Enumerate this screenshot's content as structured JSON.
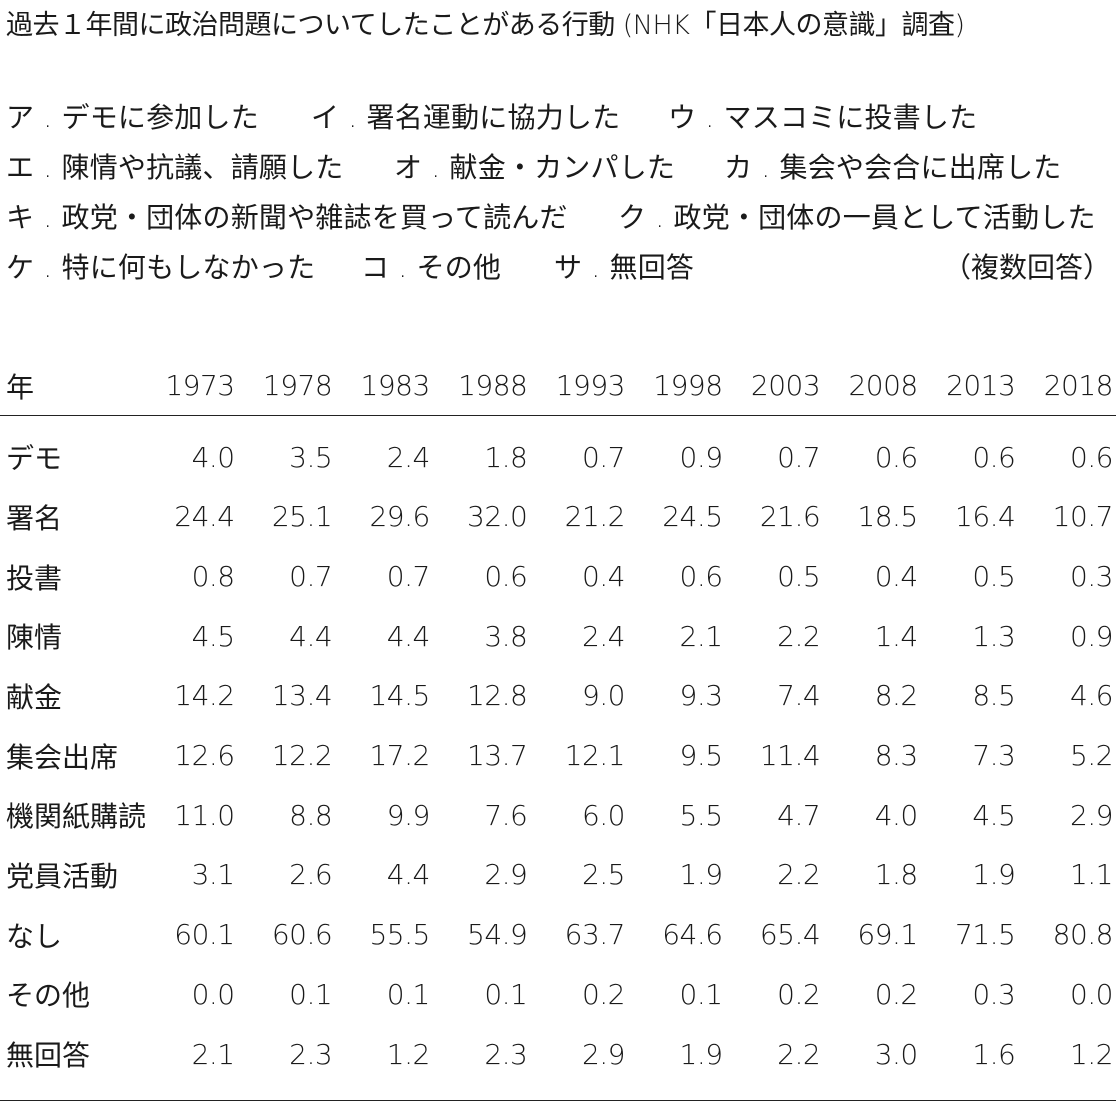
{
  "title": "過去１年間に政治問題についてしたことがある行動 (NHK「日本人の意識」調査)",
  "legend": {
    "row1": [
      "ア . デモに参加した",
      "イ . 署名運動に協力した",
      "ウ . マスコミに投書した"
    ],
    "row2": [
      "エ . 陳情や抗議、請願した",
      "オ . 献金・カンパした",
      "カ . 集会や会合に出席した"
    ],
    "row3": [
      "キ . 政党・団体の新聞や雑誌を買って読んだ",
      "ク . 政党・団体の一員として活動した"
    ],
    "row4": [
      "ケ . 特に何もしなかった",
      "コ . その他",
      "サ . 無回答"
    ],
    "note": "（複数回答）"
  },
  "table": {
    "header_label": "年",
    "years": [
      "1973",
      "1978",
      "1983",
      "1988",
      "1993",
      "1998",
      "2003",
      "2008",
      "2013",
      "2018"
    ],
    "rows": [
      {
        "label": "デモ",
        "values": [
          "4.0",
          "3.5",
          "2.4",
          "1.8",
          "0.7",
          "0.9",
          "0.7",
          "0.6",
          "0.6",
          "0.6"
        ]
      },
      {
        "label": "署名",
        "values": [
          "24.4",
          "25.1",
          "29.6",
          "32.0",
          "21.2",
          "24.5",
          "21.6",
          "18.5",
          "16.4",
          "10.7"
        ]
      },
      {
        "label": "投書",
        "values": [
          "0.8",
          "0.7",
          "0.7",
          "0.6",
          "0.4",
          "0.6",
          "0.5",
          "0.4",
          "0.5",
          "0.3"
        ]
      },
      {
        "label": "陳情",
        "values": [
          "4.5",
          "4.4",
          "4.4",
          "3.8",
          "2.4",
          "2.1",
          "2.2",
          "1.4",
          "1.3",
          "0.9"
        ]
      },
      {
        "label": "献金",
        "values": [
          "14.2",
          "13.4",
          "14.5",
          "12.8",
          "9.0",
          "9.3",
          "7.4",
          "8.2",
          "8.5",
          "4.6"
        ]
      },
      {
        "label": "集会出席",
        "values": [
          "12.6",
          "12.2",
          "17.2",
          "13.7",
          "12.1",
          "9.5",
          "11.4",
          "8.3",
          "7.3",
          "5.2"
        ]
      },
      {
        "label": "機関紙購読",
        "values": [
          "11.0",
          "8.8",
          "9.9",
          "7.6",
          "6.0",
          "5.5",
          "4.7",
          "4.0",
          "4.5",
          "2.9"
        ]
      },
      {
        "label": "党員活動",
        "values": [
          "3.1",
          "2.6",
          "4.4",
          "2.9",
          "2.5",
          "1.9",
          "2.2",
          "1.8",
          "1.9",
          "1.1"
        ]
      },
      {
        "label": "なし",
        "values": [
          "60.1",
          "60.6",
          "55.5",
          "54.9",
          "63.7",
          "64.6",
          "65.4",
          "69.1",
          "71.5",
          "80.8"
        ]
      },
      {
        "label": "その他",
        "values": [
          "0.0",
          "0.1",
          "0.1",
          "0.1",
          "0.2",
          "0.1",
          "0.2",
          "0.2",
          "0.3",
          "0.0"
        ]
      },
      {
        "label": "無回答",
        "values": [
          "2.1",
          "2.3",
          "1.2",
          "2.3",
          "2.9",
          "1.9",
          "2.2",
          "3.0",
          "1.6",
          "1.2"
        ]
      }
    ]
  }
}
